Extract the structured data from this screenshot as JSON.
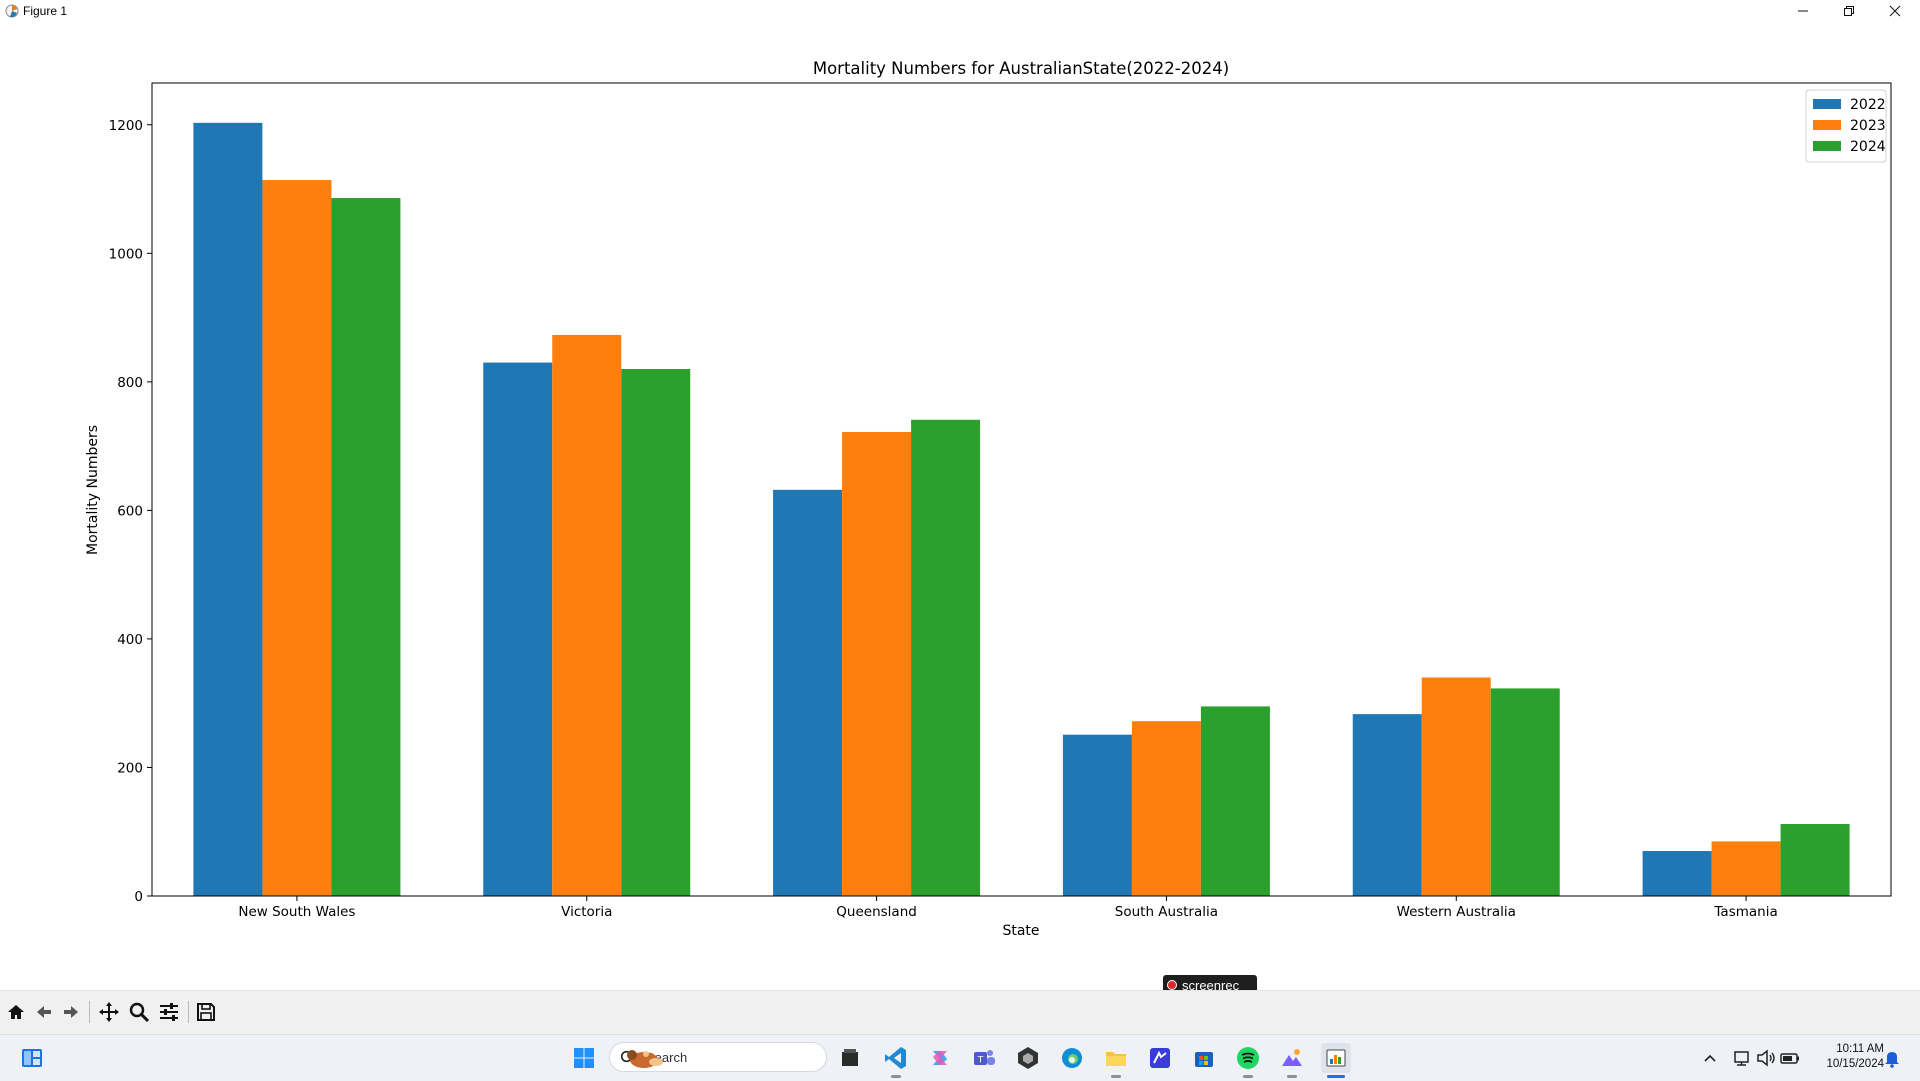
{
  "window": {
    "title": "Figure 1"
  },
  "chart_data": {
    "type": "bar",
    "title": "Mortality Numbers for AustralianState(2022-2024)",
    "xlabel": "State",
    "ylabel": "Mortality Numbers",
    "categories": [
      "New South Wales",
      "Victoria",
      "Queensland",
      "South Australia",
      "Western Australia",
      "Tasmania"
    ],
    "series": [
      {
        "name": "2022",
        "color": "#1f77b4",
        "values": [
          1203,
          830,
          632,
          251,
          283,
          70
        ]
      },
      {
        "name": "2023",
        "color": "#ff7f0e",
        "values": [
          1114,
          873,
          722,
          272,
          340,
          85
        ]
      },
      {
        "name": "2024",
        "color": "#2ca02c",
        "values": [
          1086,
          820,
          741,
          295,
          323,
          112
        ]
      }
    ],
    "ylim": [
      0,
      1265
    ],
    "yticks": [
      0,
      200,
      400,
      600,
      800,
      1000,
      1200
    ],
    "legend_position": "top-right",
    "grid": false
  },
  "overlay": {
    "recorder_label": "screenrec"
  },
  "toolbar": {
    "tools": [
      "home-icon",
      "back-icon",
      "forward-icon",
      "pan-icon",
      "zoom-icon",
      "configure-subplots-icon",
      "save-icon"
    ]
  },
  "taskbar": {
    "search_placeholder": "Search",
    "apps": [
      "windows-start-icon",
      "file-explorer-icon",
      "vscode-icon",
      "copilot-icon",
      "teams-icon",
      "unity-icon",
      "edge-icon",
      "folder-icon",
      "visual-studio-icon",
      "store-icon",
      "spotify-icon",
      "photos-icon",
      "python-figure-icon"
    ],
    "time": "10:11 AM",
    "date": "10/15/2024"
  }
}
